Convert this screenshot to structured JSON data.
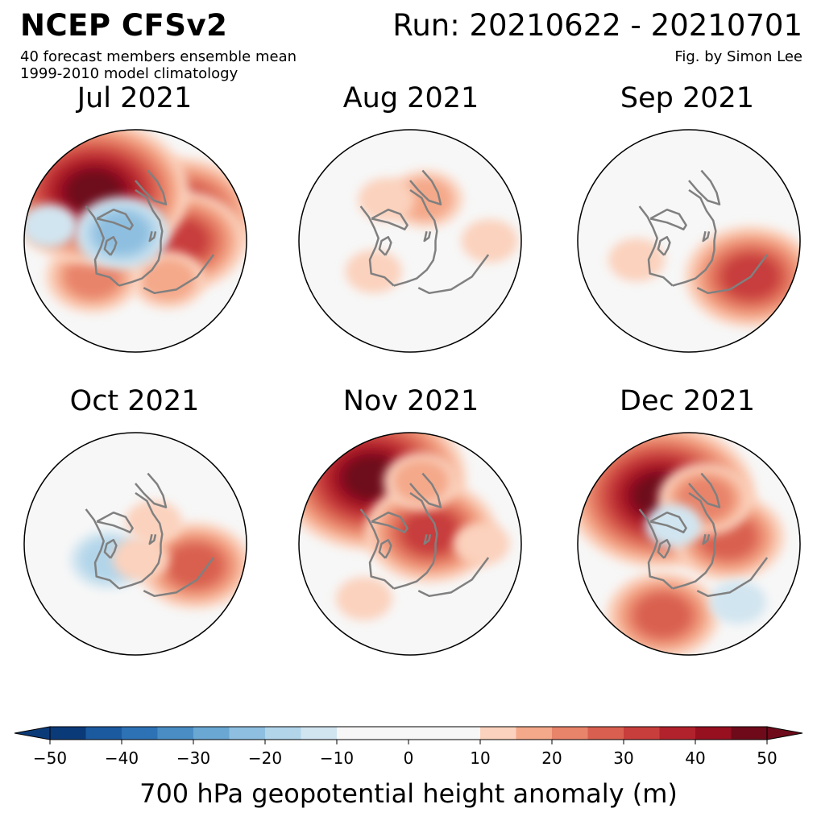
{
  "header": {
    "title": "NCEP CFSv2",
    "run": "Run: 20210622 - 20210701",
    "subtitle1": "40 forecast members ensemble mean",
    "subtitle2": "1999-2010 model climatology",
    "credit": "Fig. by Simon Lee"
  },
  "panels": [
    {
      "title": "Jul 2021",
      "anomalies": [
        {
          "lon": 60,
          "lat": 58,
          "value": 38
        },
        {
          "lon": 90,
          "lat": 62,
          "value": 30
        },
        {
          "lon": 140,
          "lat": 58,
          "value": 18
        },
        {
          "lon": 230,
          "lat": 55,
          "value": 20
        },
        {
          "lon": 320,
          "lat": 50,
          "value": 48
        },
        {
          "lon": 300,
          "lat": 80,
          "value": -20
        },
        {
          "lon": 280,
          "lat": 35,
          "value": -12
        }
      ]
    },
    {
      "title": "Aug 2021",
      "anomalies": [
        {
          "lon": 90,
          "lat": 40,
          "value": 14
        },
        {
          "lon": 230,
          "lat": 60,
          "value": 12
        },
        {
          "lon": 20,
          "lat": 62,
          "value": 15
        },
        {
          "lon": 330,
          "lat": 60,
          "value": 13
        }
      ]
    },
    {
      "title": "Sep 2021",
      "anomalies": [
        {
          "lon": 120,
          "lat": 45,
          "value": 32
        },
        {
          "lon": 250,
          "lat": 55,
          "value": 13
        }
      ]
    },
    {
      "title": "Oct 2021",
      "anomalies": [
        {
          "lon": 110,
          "lat": 50,
          "value": 28
        },
        {
          "lon": 40,
          "lat": 72,
          "value": 12
        },
        {
          "lon": 240,
          "lat": 70,
          "value": -18
        },
        {
          "lon": 160,
          "lat": 80,
          "value": 11
        }
      ]
    },
    {
      "title": "Nov 2021",
      "anomalies": [
        {
          "lon": 330,
          "lat": 42,
          "value": 48
        },
        {
          "lon": 60,
          "lat": 75,
          "value": 30
        },
        {
          "lon": 10,
          "lat": 50,
          "value": 16
        },
        {
          "lon": 220,
          "lat": 45,
          "value": 12
        },
        {
          "lon": 90,
          "lat": 45,
          "value": 12
        }
      ]
    },
    {
      "title": "Dec 2021",
      "anomalies": [
        {
          "lon": 330,
          "lat": 55,
          "value": 45
        },
        {
          "lon": 80,
          "lat": 65,
          "value": 26
        },
        {
          "lon": 200,
          "lat": 42,
          "value": 26
        },
        {
          "lon": 20,
          "lat": 60,
          "value": 20
        },
        {
          "lon": 140,
          "lat": 42,
          "value": -14
        },
        {
          "lon": 320,
          "lat": 75,
          "value": -10
        }
      ]
    }
  ],
  "colorbar": {
    "label": "700 hPa geopotential height anomaly (m)",
    "range": [
      -50,
      50
    ],
    "ticks": [
      "−50",
      "−40",
      "−30",
      "−20",
      "−10",
      "0",
      "10",
      "20",
      "30",
      "40",
      "50"
    ],
    "tick_values": [
      -50,
      -40,
      -30,
      -20,
      -10,
      0,
      10,
      20,
      30,
      40,
      50
    ],
    "levels": [
      -50,
      -45,
      -40,
      -35,
      -30,
      -25,
      -20,
      -15,
      -10,
      10,
      15,
      20,
      25,
      30,
      35,
      40,
      45,
      50
    ],
    "colors": [
      "#0b3a78",
      "#1c5aa0",
      "#2d72b5",
      "#4a8dc4",
      "#6aa7d3",
      "#8ebfe0",
      "#b2d5ea",
      "#d1e5f0",
      "#f7f7f7",
      "#fbd2bd",
      "#f4a98a",
      "#e8846a",
      "#d96050",
      "#c83e3c",
      "#b2222c",
      "#961020",
      "#6e0a1a"
    ],
    "extend": "both"
  },
  "map_style": {
    "background": "#f7f7f7",
    "coast_color": "#808080",
    "border_color": "#000000"
  }
}
